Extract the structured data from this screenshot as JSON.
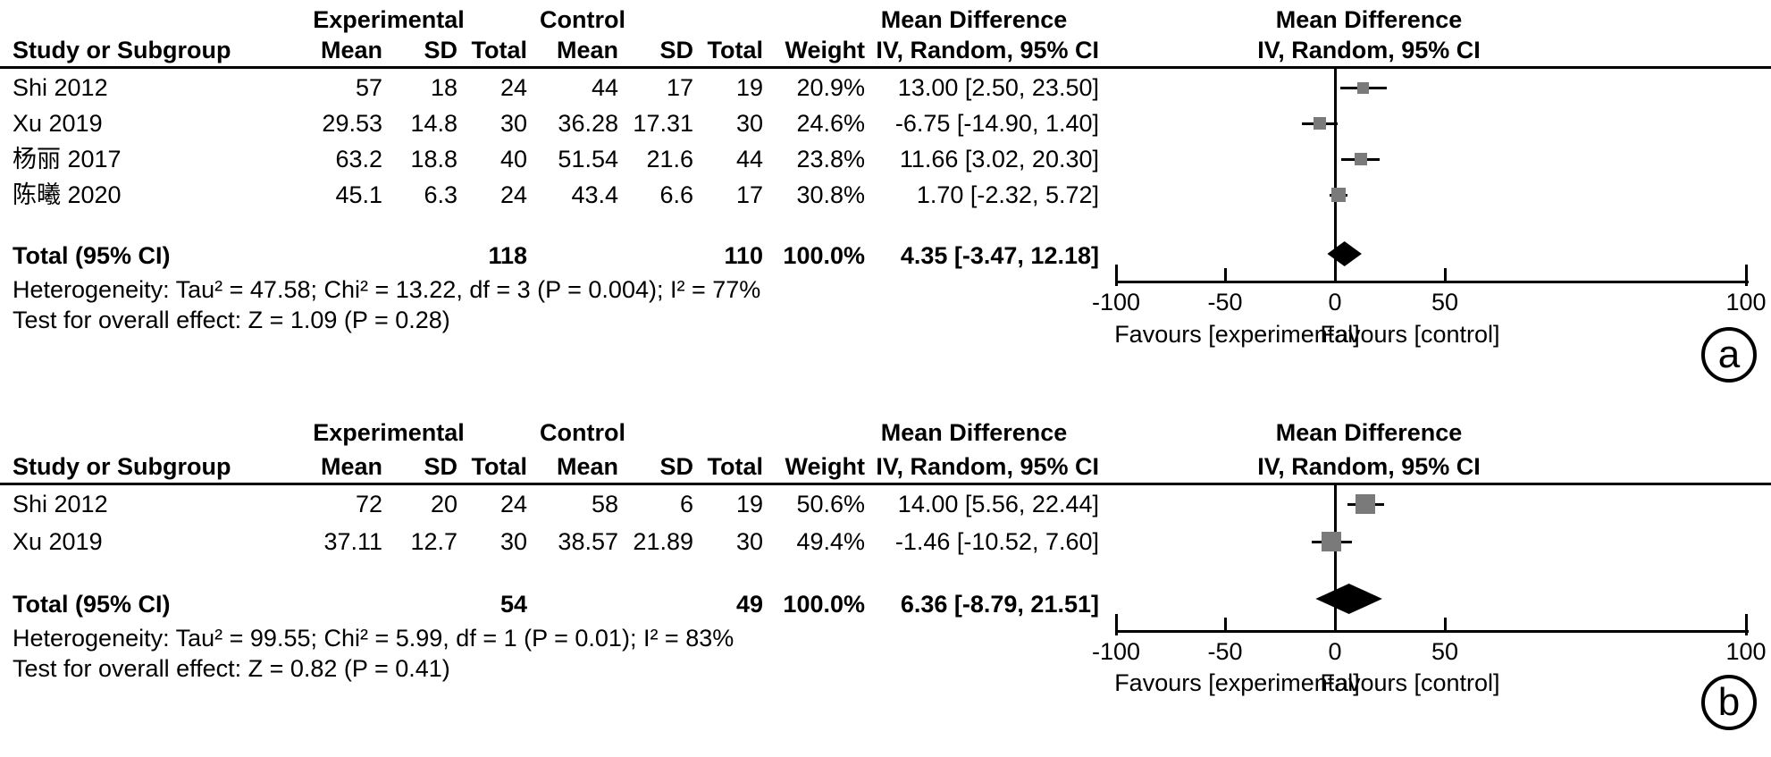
{
  "headers": {
    "study": "Study or Subgroup",
    "group_exp": "Experimental",
    "group_ctrl": "Control",
    "mean": "Mean",
    "sd": "SD",
    "total": "Total",
    "weight": "Weight",
    "md": "Mean Difference",
    "method": "IV, Random, 95% CI"
  },
  "panels": [
    {
      "tag": "a",
      "rows": [
        {
          "study": "Shi 2012",
          "mean_e": "57",
          "sd_e": "18",
          "total_e": "24",
          "mean_c": "44",
          "sd_c": "17",
          "total_c": "19",
          "weight": "20.9%",
          "ci": "13.00 [2.50, 23.50]"
        },
        {
          "study": "Xu 2019",
          "mean_e": "29.53",
          "sd_e": "14.8",
          "total_e": "30",
          "mean_c": "36.28",
          "sd_c": "17.31",
          "total_c": "30",
          "weight": "24.6%",
          "ci": "-6.75 [-14.90, 1.40]"
        },
        {
          "study": "杨丽 2017",
          "mean_e": "63.2",
          "sd_e": "18.8",
          "total_e": "40",
          "mean_c": "51.54",
          "sd_c": "21.6",
          "total_c": "44",
          "weight": "23.8%",
          "ci": "11.66 [3.02, 20.30]"
        },
        {
          "study": "陈曦 2020",
          "mean_e": "45.1",
          "sd_e": "6.3",
          "total_e": "24",
          "mean_c": "43.4",
          "sd_c": "6.6",
          "total_c": "17",
          "weight": "30.8%",
          "ci": "1.70 [-2.32, 5.72]"
        }
      ],
      "total": {
        "label": "Total (95% CI)",
        "total_e": "118",
        "total_c": "110",
        "weight": "100.0%",
        "ci": "4.35 [-3.47, 12.18]"
      },
      "heterogeneity": "Heterogeneity: Tau² = 47.58; Chi² = 13.22, df = 3 (P = 0.004); I² = 77%",
      "overall_effect": "Test for overall effect: Z = 1.09 (P = 0.28)",
      "favours_left": "Favours [experimental]",
      "favours_right": "Favours [control]"
    },
    {
      "tag": "b",
      "rows": [
        {
          "study": "Shi 2012",
          "mean_e": "72",
          "sd_e": "20",
          "total_e": "24",
          "mean_c": "58",
          "sd_c": "6",
          "total_c": "19",
          "weight": "50.6%",
          "ci": "14.00 [5.56, 22.44]"
        },
        {
          "study": "Xu 2019",
          "mean_e": "37.11",
          "sd_e": "12.7",
          "total_e": "30",
          "mean_c": "38.57",
          "sd_c": "21.89",
          "total_c": "30",
          "weight": "49.4%",
          "ci": "-1.46 [-10.52, 7.60]"
        }
      ],
      "total": {
        "label": "Total (95% CI)",
        "total_e": "54",
        "total_c": "49",
        "weight": "100.0%",
        "ci": "6.36 [-8.79, 21.51]"
      },
      "heterogeneity": "Heterogeneity: Tau² = 99.55; Chi² = 5.99, df = 1 (P = 0.01); I² = 83%",
      "overall_effect": "Test for overall effect: Z = 0.82 (P = 0.41)",
      "favours_left": "Favours [experimental]",
      "favours_right": "Favours [control]"
    }
  ],
  "chart_data": [
    {
      "type": "scatter",
      "subtype": "forest-plot",
      "title": "Mean Difference",
      "method": "IV, Random, 95% CI",
      "effect_measure": "Mean Difference",
      "model": "Random effects, inverse variance",
      "xlim": [
        -100,
        100
      ],
      "axis": {
        "ticks": [
          -100,
          -50,
          0,
          50,
          100
        ]
      },
      "favours": [
        "Favours [experimental]",
        "Favours [control]"
      ],
      "studies": [
        {
          "name": "Shi 2012",
          "md": 13.0,
          "ci_low": 2.5,
          "ci_high": 23.5,
          "weight_pct": 20.9
        },
        {
          "name": "Xu 2019",
          "md": -6.75,
          "ci_low": -14.9,
          "ci_high": 1.4,
          "weight_pct": 24.6
        },
        {
          "name": "杨丽 2017",
          "md": 11.66,
          "ci_low": 3.02,
          "ci_high": 20.3,
          "weight_pct": 23.8
        },
        {
          "name": "陈曦 2020",
          "md": 1.7,
          "ci_low": -2.32,
          "ci_high": 5.72,
          "weight_pct": 30.8
        }
      ],
      "summary": {
        "label": "Total (95% CI)",
        "md": 4.35,
        "ci_low": -3.47,
        "ci_high": 12.18
      }
    },
    {
      "type": "scatter",
      "subtype": "forest-plot",
      "title": "Mean Difference",
      "method": "IV, Random, 95% CI",
      "effect_measure": "Mean Difference",
      "model": "Random effects, inverse variance",
      "xlim": [
        -100,
        100
      ],
      "axis": {
        "ticks": [
          -100,
          -50,
          0,
          50,
          100
        ]
      },
      "favours": [
        "Favours [experimental]",
        "Favours [control]"
      ],
      "studies": [
        {
          "name": "Shi 2012",
          "md": 14.0,
          "ci_low": 5.56,
          "ci_high": 22.44,
          "weight_pct": 50.6
        },
        {
          "name": "Xu 2019",
          "md": -1.46,
          "ci_low": -10.52,
          "ci_high": 7.6,
          "weight_pct": 49.4
        }
      ],
      "summary": {
        "label": "Total (95% CI)",
        "md": 6.36,
        "ci_low": -8.79,
        "ci_high": 21.51
      }
    }
  ]
}
